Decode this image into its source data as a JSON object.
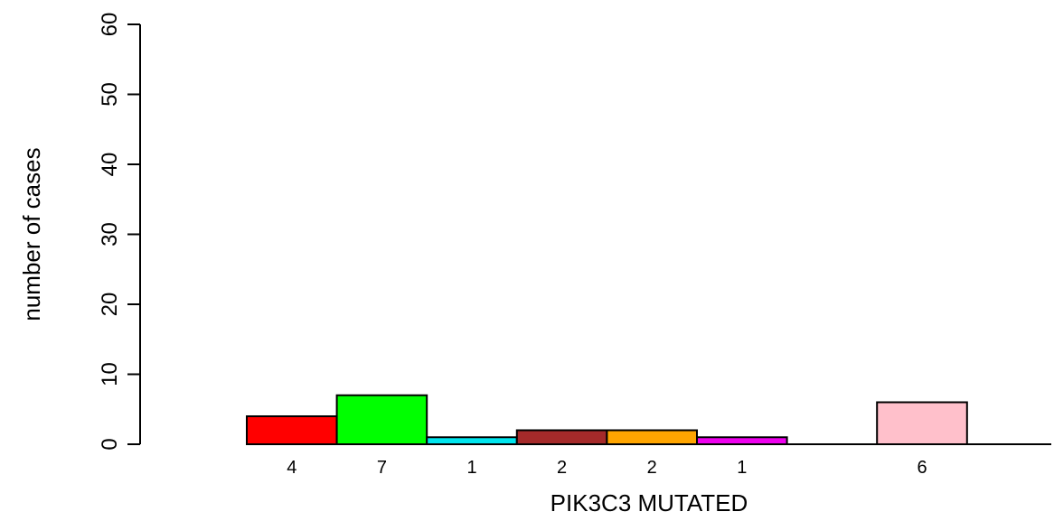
{
  "chart_data": {
    "type": "bar",
    "title": "",
    "xlabel": "PIK3C3 MUTATED",
    "ylabel": "number of cases",
    "ylim": [
      0,
      60
    ],
    "yticks": [
      0,
      10,
      20,
      30,
      40,
      50,
      60
    ],
    "grid": false,
    "legend": "none",
    "bars": [
      {
        "value": 4,
        "label": "4",
        "color": "#ff0000"
      },
      {
        "value": 7,
        "label": "7",
        "color": "#00ff00"
      },
      {
        "value": 1,
        "label": "1",
        "color": "#00e5ee"
      },
      {
        "value": 2,
        "label": "2",
        "color": "#a52a2a"
      },
      {
        "value": 2,
        "label": "2",
        "color": "#ffa500"
      },
      {
        "value": 1,
        "label": "1",
        "color": "#ee00ee"
      },
      {
        "value": 0,
        "label": "",
        "color": "#ffffff"
      },
      {
        "value": 6,
        "label": "6",
        "color": "#ffc0cb"
      }
    ]
  }
}
